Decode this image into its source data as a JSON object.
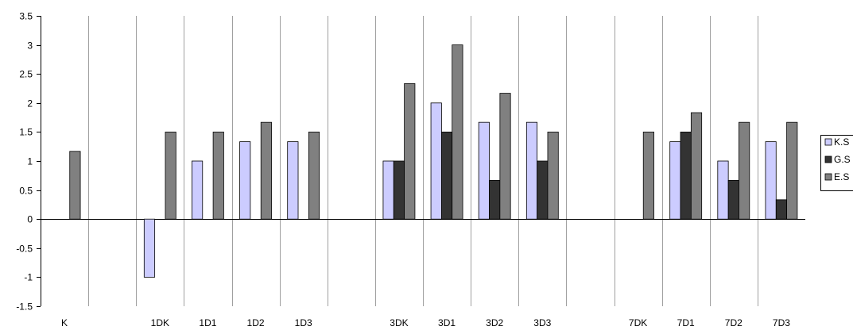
{
  "chart_data": {
    "type": "bar",
    "categories": [
      "K",
      "",
      "1DK",
      "1D1",
      "1D2",
      "1D3",
      "",
      "3DK",
      "3D1",
      "3D2",
      "3D3",
      "",
      "7DK",
      "7D1",
      "7D2",
      "7D3"
    ],
    "series": [
      {
        "name": "K.S",
        "color": "#ccccff",
        "values": [
          0,
          0,
          -1,
          1,
          1.333,
          1.333,
          0,
          1,
          2,
          1.667,
          1.667,
          0,
          0,
          1.333,
          1,
          1.333
        ]
      },
      {
        "name": "G.S",
        "color": "#333333",
        "values": [
          0,
          0,
          0,
          0,
          0,
          0,
          0,
          1,
          1.5,
          0.667,
          1,
          0,
          0,
          1.5,
          0.667,
          0.333
        ]
      },
      {
        "name": "E.S",
        "color": "#808080",
        "values": [
          1.167,
          0,
          1.5,
          1.5,
          1.667,
          1.5,
          0,
          2.333,
          3,
          2.167,
          1.5,
          0,
          1.5,
          1.833,
          1.667,
          1.667
        ]
      }
    ],
    "y_ticks": [
      "3.5",
      "3",
      "2.5",
      "2",
      "1.5",
      "1",
      "0.5",
      "0",
      "-0.5",
      "-1",
      "-1.5"
    ],
    "ylim": [
      -1.5,
      3.5
    ],
    "title": "",
    "xlabel": "",
    "ylabel": "",
    "legend_position": "right",
    "grid": "vertical category separators"
  }
}
